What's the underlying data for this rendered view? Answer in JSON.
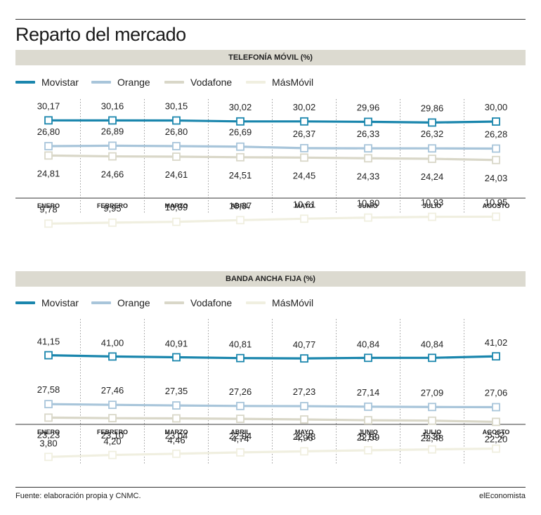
{
  "title": "Reparto del mercado",
  "source": "Fuente: elaboración propia y CNMC.",
  "brand": "elEconomista",
  "colors": {
    "Movistar": "#1a86ad",
    "Orange": "#a8c5da",
    "Vodafone": "#d9d7c8",
    "MásMóvil": "#f0efe0",
    "band": "#dcdad0"
  },
  "chart_data": [
    {
      "type": "line",
      "title": "TELEFONÍA MÓVIL (%)",
      "categories": [
        "ENERO",
        "FEBRERO",
        "MARZO",
        "ABRIL",
        "MAYO",
        "JUNIO",
        "JULIO",
        "AGOSTO"
      ],
      "series": [
        {
          "name": "Movistar",
          "values": [
            30.17,
            30.16,
            30.15,
            30.02,
            30.02,
            29.96,
            29.86,
            30.0
          ],
          "labels": [
            "30,17",
            "30,16",
            "30,15",
            "30,02",
            "30,02",
            "29,96",
            "29,86",
            "30,00"
          ]
        },
        {
          "name": "Orange",
          "values": [
            26.8,
            26.89,
            26.8,
            26.69,
            26.37,
            26.33,
            26.32,
            26.28
          ],
          "labels": [
            "26,80",
            "26,89",
            "26,80",
            "26,69",
            "26,37",
            "26,33",
            "26,32",
            "26,28"
          ]
        },
        {
          "name": "Vodafone",
          "values": [
            24.81,
            24.66,
            24.61,
            24.51,
            24.45,
            24.33,
            24.24,
            24.03
          ],
          "labels": [
            "24,81",
            "24,66",
            "24,61",
            "24,51",
            "24,45",
            "24,33",
            "24,24",
            "24,03"
          ]
        },
        {
          "name": "MásMóvil",
          "values": [
            9.78,
            9.95,
            10.09,
            10.37,
            10.61,
            10.8,
            10.93,
            10.95
          ],
          "labels": [
            "9,78",
            "9,95",
            "10,09",
            "10,37",
            "10,61",
            "10,80",
            "10,93",
            "10,95"
          ]
        }
      ],
      "legend": "top-left",
      "grid": "vertical-dotted"
    },
    {
      "type": "line",
      "title": "BANDA ANCHA FIJA (%)",
      "categories": [
        "ENERO",
        "FEBRERO",
        "MARZO",
        "ABRIL",
        "MAYO",
        "JUNIO",
        "JULIO",
        "AGOSTO"
      ],
      "series": [
        {
          "name": "Movistar",
          "values": [
            41.15,
            41.0,
            40.91,
            40.81,
            40.77,
            40.84,
            40.84,
            41.02
          ],
          "labels": [
            "41,15",
            "41,00",
            "40,91",
            "40,81",
            "40,77",
            "40,84",
            "40,84",
            "41,02"
          ]
        },
        {
          "name": "Orange",
          "values": [
            27.58,
            27.46,
            27.35,
            27.26,
            27.23,
            27.14,
            27.09,
            27.06
          ],
          "labels": [
            "27,58",
            "27,46",
            "27,35",
            "27,26",
            "27,23",
            "27,14",
            "27,09",
            "27,06"
          ]
        },
        {
          "name": "Vodafone",
          "values": [
            23.23,
            23.1,
            23.04,
            22.94,
            22.78,
            22.59,
            22.48,
            22.2
          ],
          "labels": [
            "23,23",
            "23,10",
            "23,04",
            "22,94",
            "22,78",
            "22,59",
            "22,48",
            "22,20"
          ]
        },
        {
          "name": "MásMóvil",
          "values": [
            3.8,
            4.2,
            4.46,
            4.74,
            4.96,
            5.18,
            5.36,
            5.52
          ],
          "labels": [
            "3,80",
            "4,20",
            "4,46",
            "4,74",
            "4,96",
            "5,18",
            "5,36",
            "5,52"
          ]
        }
      ],
      "legend": "top-left",
      "grid": "vertical-dotted"
    }
  ]
}
